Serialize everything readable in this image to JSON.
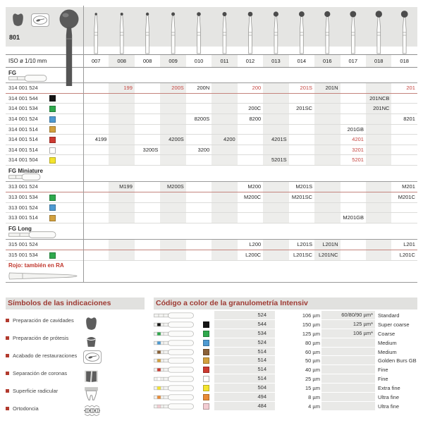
{
  "header": {
    "product_code": "801",
    "icons": [
      "cavity-prep-icon",
      "finishing-icon"
    ],
    "iso_label": "ISO ø 1/10 mm",
    "iso_sizes": [
      "007",
      "008",
      "008",
      "009",
      "010",
      "011",
      "012",
      "013",
      "014",
      "016",
      "017",
      "018",
      "018"
    ]
  },
  "catalog": {
    "sections": [
      {
        "name": "FG",
        "rows": [
          {
            "article": "314 001 524",
            "swatch": null,
            "cells": {
              "1": "199",
              "3": "200S",
              "4": "200N",
              "6": "200",
              "8": "201S",
              "9": "201N",
              "12": "201"
            },
            "red": [
              1,
              3,
              6,
              8,
              12
            ],
            "standard": true
          },
          {
            "article": "314 001 544",
            "swatch": "black",
            "cells": {
              "11": "201NCB"
            }
          },
          {
            "article": "314 001 534",
            "swatch": "green",
            "cells": {
              "6": "200C",
              "8": "201SC",
              "11": "201NC"
            }
          },
          {
            "article": "314 001 524",
            "swatch": "blue",
            "cells": {
              "4": "8200S",
              "6": "8200",
              "12": "8201"
            }
          },
          {
            "article": "314 001 514",
            "swatch": "gold",
            "cells": {
              "10": "201GB"
            }
          },
          {
            "article": "314 001 514",
            "swatch": "red",
            "cells": {
              "0": "4199",
              "3": "4200S",
              "5": "4200",
              "7": "4201S",
              "10": "4201"
            },
            "red": [
              10
            ]
          },
          {
            "article": "314 001 514",
            "swatch": "white",
            "cells": {
              "2": "3200S",
              "4": "3200",
              "10": "3201"
            },
            "red": [
              10
            ]
          },
          {
            "article": "314 001 504",
            "swatch": "yellow",
            "cells": {
              "7": "5201S",
              "10": "5201"
            },
            "red": [
              10
            ]
          }
        ]
      },
      {
        "name": "FG Miniature",
        "rows": [
          {
            "article": "313 001 524",
            "swatch": null,
            "cells": {
              "1": "M199",
              "3": "M200S",
              "6": "M200",
              "8": "M201S",
              "12": "M201"
            },
            "standard": true
          },
          {
            "article": "313 001 534",
            "swatch": "green",
            "cells": {
              "6": "M200C",
              "8": "M201SC",
              "12": "M201C"
            }
          },
          {
            "article": "313 001 524",
            "swatch": "blue",
            "cells": {}
          },
          {
            "article": "313 001 514",
            "swatch": "gold",
            "cells": {
              "10": "M201GB"
            }
          }
        ]
      },
      {
        "name": "FG Long",
        "rows": [
          {
            "article": "315 001 524",
            "swatch": null,
            "cells": {
              "6": "L200",
              "8": "L201S",
              "9": "L201N",
              "12": "L201"
            },
            "standard": true
          },
          {
            "article": "315 001 534",
            "swatch": "green",
            "cells": {
              "6": "L200C",
              "8": "L201SC",
              "9": "L201NC",
              "12": "L201C"
            }
          }
        ]
      }
    ],
    "note": "Rojo: también en RA"
  },
  "symbols": {
    "title": "Símbolos de las indicaciones",
    "items": [
      {
        "label": "Preparación de cavidades",
        "icon": "cavity-prep-icon"
      },
      {
        "label": "Preparación de prótesis",
        "icon": "prosthesis-prep-icon"
      },
      {
        "label": "Acabado de restauraciones",
        "icon": "finishing-icon"
      },
      {
        "label": "Separación de coronas",
        "icon": "crown-separation-icon"
      },
      {
        "label": "Superficie radicular",
        "icon": "root-surface-icon"
      },
      {
        "label": "Ortodoncia",
        "icon": "orthodontics-icon"
      }
    ]
  },
  "grit_table": {
    "title": "Código a color de la granulometría Intensiv",
    "rows": [
      {
        "code": "524",
        "size": "106 µm",
        "alt": "60/80/90 µm*",
        "name": "Standard",
        "color": null
      },
      {
        "code": "544",
        "size": "150 µm",
        "alt": "125 µm*",
        "name": "Super coarse",
        "color": "black"
      },
      {
        "code": "534",
        "size": "125 µm",
        "alt": "106 µm*",
        "name": "Coarse",
        "color": "green"
      },
      {
        "code": "524",
        "size": "80 µm",
        "alt": "",
        "name": "Medium",
        "color": "blue"
      },
      {
        "code": "514",
        "size": "60 µm",
        "alt": "",
        "name": "Medium",
        "color": "brown"
      },
      {
        "code": "514",
        "size": "50 µm",
        "alt": "",
        "name": "Golden Burs GB",
        "color": "gold"
      },
      {
        "code": "514",
        "size": "40 µm",
        "alt": "",
        "name": "Fine",
        "color": "red"
      },
      {
        "code": "514",
        "size": "25 µm",
        "alt": "",
        "name": "Fine",
        "color": "white"
      },
      {
        "code": "504",
        "size": "15 µm",
        "alt": "",
        "name": "Extra fine",
        "color": "yellow"
      },
      {
        "code": "494",
        "size": "8 µm",
        "alt": "",
        "name": "Ultra fine",
        "color": "orange"
      },
      {
        "code": "484",
        "size": "4 µm",
        "alt": "",
        "name": "Ultra fine",
        "color": "pink"
      }
    ]
  },
  "colors": {
    "accent_red": "#c5443f",
    "heading_red": "#9e3a33",
    "band_gray": "#ededeb",
    "swatches": {
      "black": "#161616",
      "green": "#2fa94d",
      "blue": "#4e9ad2",
      "gold": "#d3a13e",
      "red": "#cd3a31",
      "white": "#ffffff",
      "yellow": "#f4e42e",
      "brown": "#8a6138",
      "orange": "#e98b36",
      "pink": "#f3ccd2"
    }
  }
}
